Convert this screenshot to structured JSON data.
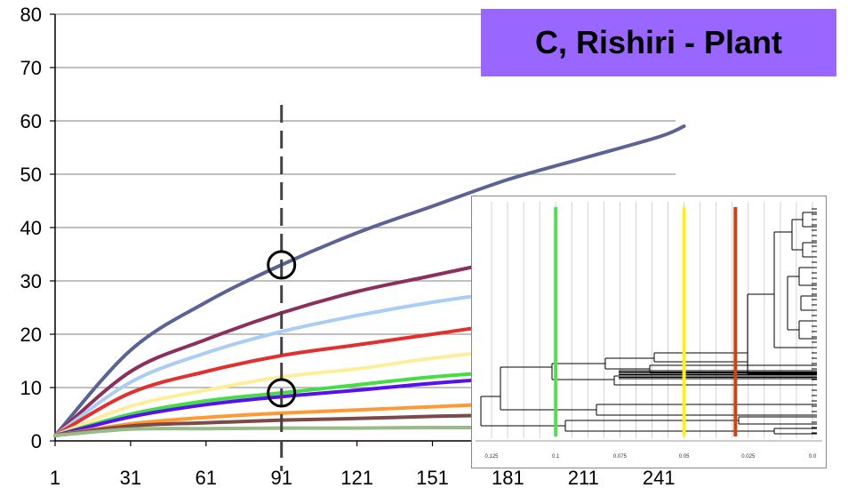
{
  "chart_data": {
    "type": "line",
    "title": "C, Rishiri - Plant",
    "xlabel": "",
    "ylabel": "",
    "xlim": [
      1,
      251
    ],
    "ylim": [
      0,
      80
    ],
    "x_ticks": [
      1,
      31,
      61,
      91,
      121,
      151,
      181,
      211,
      241
    ],
    "y_ticks": [
      0,
      10,
      20,
      30,
      40,
      50,
      60,
      70,
      80
    ],
    "grid": "horizontal",
    "series": [
      {
        "color": "#5a6296",
        "x": [
          1,
          31,
          61,
          91,
          121,
          151,
          181,
          211,
          241,
          251
        ],
        "values": [
          1,
          17,
          26,
          33,
          39,
          44,
          49,
          53,
          57,
          59
        ]
      },
      {
        "color": "#8b2f5c",
        "x": [
          1,
          31,
          61,
          91,
          121,
          151,
          181,
          211,
          241
        ],
        "values": [
          1,
          13,
          19,
          24,
          28,
          31,
          34,
          37,
          39
        ]
      },
      {
        "color": "#a9cdf5",
        "x": [
          1,
          31,
          61,
          91,
          121,
          151,
          181,
          211,
          241
        ],
        "values": [
          1,
          11,
          16.5,
          20.5,
          23.5,
          26,
          28,
          30,
          31.5
        ]
      },
      {
        "color": "#e03030",
        "x": [
          1,
          31,
          61,
          91,
          121,
          151,
          181,
          211,
          241
        ],
        "values": [
          1,
          9,
          13,
          16,
          18,
          20,
          22,
          23.5,
          25
        ]
      },
      {
        "color": "#ffee99",
        "x": [
          1,
          31,
          61,
          91,
          121,
          151,
          181,
          211,
          241
        ],
        "values": [
          1,
          6.5,
          9.5,
          12,
          13.5,
          15.5,
          17,
          18,
          19
        ]
      },
      {
        "color": "#44dd44",
        "x": [
          1,
          31,
          61,
          91,
          121,
          151,
          181,
          211,
          241
        ],
        "values": [
          1,
          5,
          7.5,
          9,
          10.5,
          12,
          13,
          14,
          15
        ]
      },
      {
        "color": "#5511ee",
        "x": [
          1,
          31,
          61,
          91,
          121,
          151,
          181,
          211,
          241
        ],
        "values": [
          1,
          4.5,
          6.8,
          8.3,
          9.5,
          10.8,
          11.8,
          12.6,
          13.3
        ]
      },
      {
        "color": "#ff9933",
        "x": [
          1,
          31,
          61,
          91,
          121,
          151,
          181,
          211,
          241
        ],
        "values": [
          1,
          3.2,
          4.4,
          5.2,
          5.8,
          6.4,
          7,
          7.5,
          8
        ]
      },
      {
        "color": "#7d4a4a",
        "x": [
          1,
          31,
          61,
          91,
          121,
          151,
          181,
          211,
          241
        ],
        "values": [
          1,
          2.8,
          3.4,
          3.9,
          4.2,
          4.6,
          4.9,
          5.1,
          5.3
        ]
      },
      {
        "color": "#99bb88",
        "x": [
          1,
          31,
          61,
          91,
          121,
          151,
          181,
          211,
          241
        ],
        "values": [
          1,
          2.2,
          2.3,
          2.4,
          2.4,
          2.5,
          2.5,
          2.5,
          2.5
        ]
      }
    ],
    "annotations": {
      "dashed_line_x": 91,
      "circles": [
        {
          "x": 91,
          "y": 33
        },
        {
          "x": 91,
          "y": 9
        }
      ]
    },
    "inset": {
      "type": "dendrogram",
      "axis_ticks": [
        "0.125",
        "0.1",
        "0.075",
        "0.05",
        "0.025",
        "0.0"
      ],
      "cut_lines": [
        {
          "value": 0.1,
          "color": "#55dd55"
        },
        {
          "value": 0.05,
          "color": "#ffee22"
        },
        {
          "value": 0.03,
          "color": "#cc4411"
        }
      ]
    }
  }
}
